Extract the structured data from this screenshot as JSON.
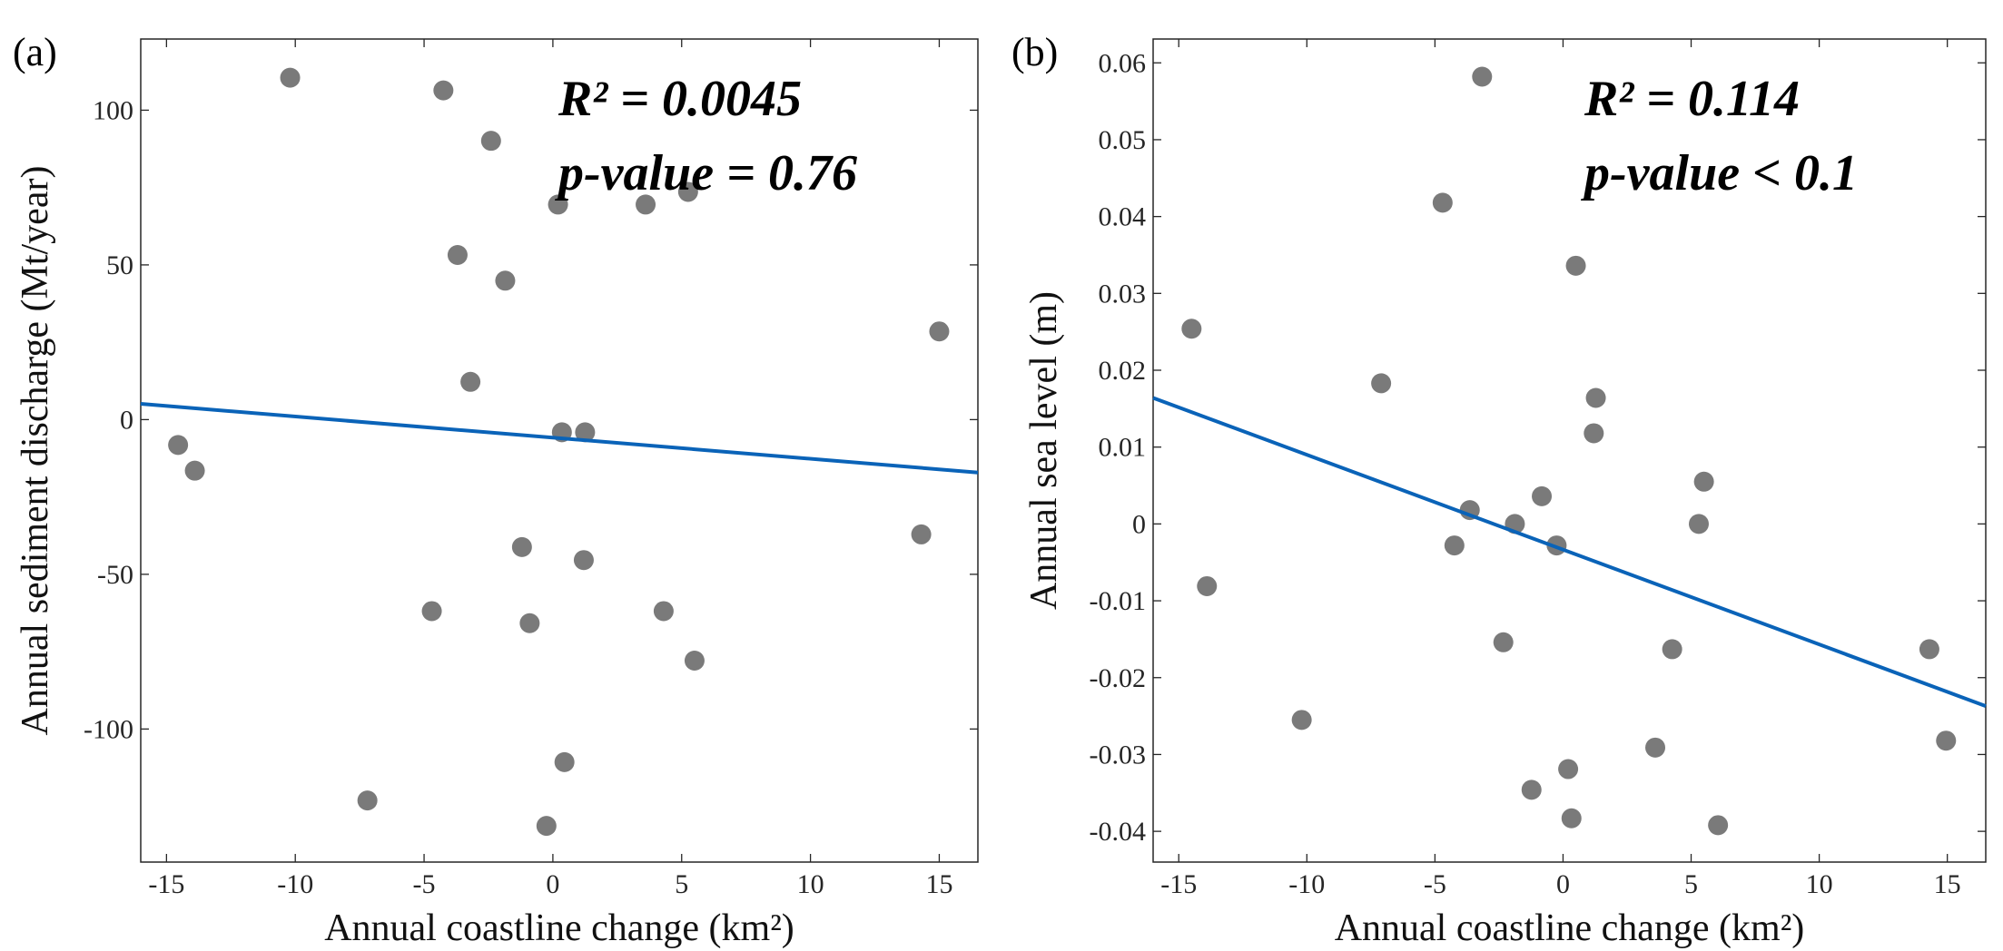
{
  "chart_data": [
    {
      "type": "scatter",
      "panel_label": "(a)",
      "xlabel": "Annual coastline change (km²)",
      "ylabel": "Annual sediment discharge (Mt/year)",
      "xlim": [
        -16,
        16.5
      ],
      "ylim": [
        -143,
        123
      ],
      "xticks": [
        -15,
        -10,
        -5,
        0,
        5,
        10,
        15
      ],
      "yticks": [
        -100,
        -50,
        0,
        50,
        100
      ],
      "annotations": [
        "R² = 0.0045",
        "p-value = 0.76"
      ],
      "points": [
        [
          -10.2,
          110.5
        ],
        [
          -4.25,
          106.4
        ],
        [
          -2.4,
          90.1
        ],
        [
          0.2,
          69.5
        ],
        [
          3.6,
          69.5
        ],
        [
          5.25,
          73.6
        ],
        [
          -3.7,
          53.2
        ],
        [
          -1.85,
          44.9
        ],
        [
          15,
          28.5
        ],
        [
          -3.2,
          12.2
        ],
        [
          0.35,
          -4.1
        ],
        [
          1.25,
          -4.1
        ],
        [
          -14.55,
          -8.2
        ],
        [
          -13.9,
          -16.5
        ],
        [
          14.3,
          -37.1
        ],
        [
          -1.2,
          -41.2
        ],
        [
          1.2,
          -45.4
        ],
        [
          -4.7,
          -61.9
        ],
        [
          4.3,
          -61.9
        ],
        [
          -0.9,
          -65.8
        ],
        [
          5.5,
          -77.9
        ],
        [
          0.45,
          -110.7
        ],
        [
          -7.2,
          -123.1
        ],
        [
          -0.25,
          -131.3
        ]
      ],
      "fit_line": [
        [
          -16,
          5.1
        ],
        [
          16.5,
          -17.1
        ]
      ],
      "marker_color": "#7a7a7a",
      "line_color": "#0a63b8",
      "grid": false
    },
    {
      "type": "scatter",
      "panel_label": "(b)",
      "xlabel": "Annual coastline change (km²)",
      "ylabel": "Annual sea level (m)",
      "xlim": [
        -16,
        16.5
      ],
      "ylim": [
        -0.044,
        0.0631
      ],
      "xticks": [
        -15,
        -10,
        -5,
        0,
        5,
        10,
        15
      ],
      "yticks": [
        -0.04,
        -0.03,
        -0.02,
        -0.01,
        0,
        0.01,
        0.02,
        0.03,
        0.04,
        0.05,
        0.06
      ],
      "annotations": [
        "R² = 0.114",
        "p-value < 0.1"
      ],
      "points": [
        [
          -3.16,
          0.0582
        ],
        [
          -4.7,
          0.0418
        ],
        [
          0.5,
          0.0336
        ],
        [
          -14.5,
          0.0254
        ],
        [
          -7.1,
          0.0183
        ],
        [
          1.28,
          0.0164
        ],
        [
          1.2,
          0.0118
        ],
        [
          5.5,
          0.0055
        ],
        [
          -0.83,
          0.0036
        ],
        [
          -3.64,
          0.0018
        ],
        [
          -1.88,
          0.0
        ],
        [
          5.3,
          0.0
        ],
        [
          -4.24,
          -0.0028
        ],
        [
          -0.25,
          -0.0028
        ],
        [
          -13.9,
          -0.0081
        ],
        [
          -2.33,
          -0.0154
        ],
        [
          4.26,
          -0.0163
        ],
        [
          14.3,
          -0.0163
        ],
        [
          -10.2,
          -0.0255
        ],
        [
          14.95,
          -0.0282
        ],
        [
          3.6,
          -0.0291
        ],
        [
          0.2,
          -0.0319
        ],
        [
          -1.23,
          -0.0346
        ],
        [
          0.33,
          -0.0383
        ],
        [
          6.05,
          -0.0392
        ]
      ],
      "fit_line": [
        [
          -16,
          0.0164
        ],
        [
          16.5,
          -0.0237
        ]
      ],
      "marker_color": "#7a7a7a",
      "line_color": "#0a63b8",
      "grid": false
    }
  ]
}
